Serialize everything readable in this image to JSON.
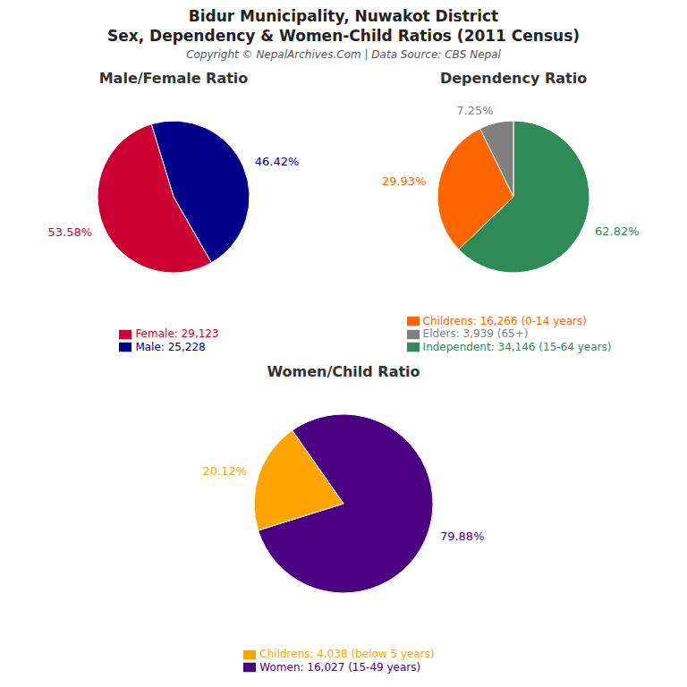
{
  "title": "Bidur Municipality, Nuwakot District",
  "subtitle": "Sex, Dependency & Women-Child Ratios (2011 Census)",
  "annotations": [
    "Copyright © NepalArchives.Com | Data Source: CBS Nepal"
  ],
  "chart_data": [
    {
      "type": "pie",
      "title": "Male/Female Ratio",
      "categories": [
        "Male: 25,228",
        "Female: 29,123"
      ],
      "values": [
        46.42,
        53.58
      ],
      "value_labels": [
        "46.42%",
        "53.58%"
      ],
      "colors": [
        "#00008B",
        "#CC0033"
      ],
      "data_labels": true,
      "legend": "bottom"
    },
    {
      "type": "pie",
      "title": "Dependency Ratio",
      "categories": [
        "Independent: 34,146 (15-64 years)",
        "Childrens: 16,266 (0-14 years)",
        "Elders: 3,939 (65+)"
      ],
      "values": [
        62.82,
        29.93,
        7.25
      ],
      "value_labels": [
        "62.82%",
        "29.93%",
        "7.25%"
      ],
      "colors": [
        "#2E8B57",
        "#FF6600",
        "#808080"
      ],
      "data_labels": true,
      "legend": "bottom"
    },
    {
      "type": "pie",
      "title": "Women/Child Ratio",
      "categories": [
        "Women: 16,027 (15-49 years)",
        "Childrens: 4,038 (below 5 years)"
      ],
      "values": [
        79.88,
        20.12
      ],
      "value_labels": [
        "79.88%",
        "20.12%"
      ],
      "colors": [
        "#4B0082",
        "#FFA500"
      ],
      "data_labels": true,
      "legend": "bottom"
    }
  ]
}
